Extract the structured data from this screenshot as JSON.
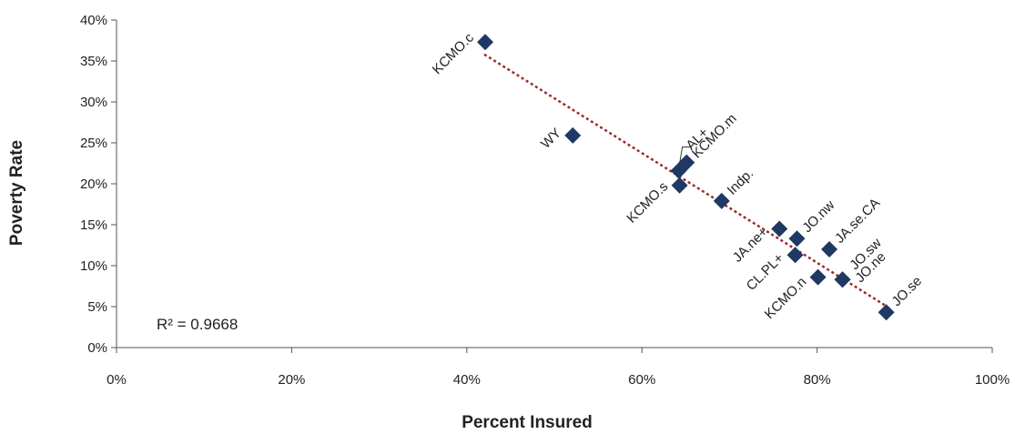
{
  "chart_data": {
    "type": "scatter",
    "xlabel": "Percent Insured",
    "ylabel": "Poverty Rate",
    "xlim": [
      0,
      100
    ],
    "ylim": [
      0,
      40
    ],
    "xticks": [
      "0%",
      "20%",
      "40%",
      "60%",
      "80%",
      "100%"
    ],
    "yticks": [
      "0%",
      "5%",
      "10%",
      "15%",
      "20%",
      "25%",
      "30%",
      "35%",
      "40%"
    ],
    "r_squared": "R² = 0.9668",
    "marker_color": "#1f3864",
    "trendline_color": "#9e2a2b",
    "points": [
      {
        "label": "KCMO.c",
        "x": 42.1,
        "y": 37.3
      },
      {
        "label": "WY",
        "x": 52.1,
        "y": 25.9
      },
      {
        "label": "AL+",
        "x": 64.2,
        "y": 21.6
      },
      {
        "label": "KCMO.m",
        "x": 65.1,
        "y": 22.6
      },
      {
        "label": "KCMO.s",
        "x": 64.3,
        "y": 19.8
      },
      {
        "label": "Indp.",
        "x": 69.1,
        "y": 17.9
      },
      {
        "label": "JA.ne+",
        "x": 75.7,
        "y": 14.5
      },
      {
        "label": "JO.nw",
        "x": 77.7,
        "y": 13.3
      },
      {
        "label": "JA.se.CA",
        "x": 81.4,
        "y": 12.0
      },
      {
        "label": "CL.PL+",
        "x": 77.5,
        "y": 11.3
      },
      {
        "label": "JO.sw",
        "x": 82.9,
        "y": 8.3
      },
      {
        "label": "JO.ne",
        "x": 82.9,
        "y": 8.3
      },
      {
        "label": "KCMO.n",
        "x": 80.1,
        "y": 8.6
      },
      {
        "label": "JO.se",
        "x": 87.9,
        "y": 4.3
      }
    ],
    "trendline": {
      "x1": 42,
      "y1": 35.8,
      "x2": 88,
      "y2": 5.0
    }
  }
}
